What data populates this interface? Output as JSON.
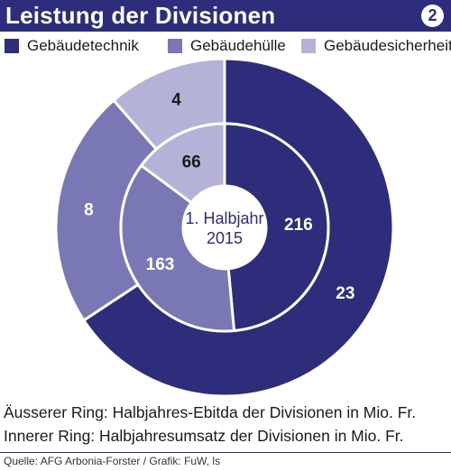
{
  "header": {
    "title": "Leistung der Divisionen",
    "badge": "2"
  },
  "legend": [
    {
      "label": "Gebäudetechnik",
      "color": "#2d2d7b"
    },
    {
      "label": "Gebäudehülle",
      "color": "#7a78b4"
    },
    {
      "label": "Gebäudesicherheit",
      "color": "#b4b2d6"
    }
  ],
  "chart_data": {
    "type": "pie",
    "title": "Leistung der Divisionen",
    "center_label": [
      "1. Halbjahr",
      "2015"
    ],
    "categories": [
      "Gebäudetechnik",
      "Gebäudehülle",
      "Gebäudesicherheit"
    ],
    "colors": [
      "#2d2d7b",
      "#7a78b4",
      "#b4b2d6"
    ],
    "series": [
      {
        "name": "Äusserer Ring: Halbjahres-Ebitda der Divisionen in Mio. Fr.",
        "values": [
          23,
          8,
          4
        ]
      },
      {
        "name": "Innerer Ring: Halbjahresumsatz der Divisionen in Mio. Fr.",
        "values": [
          216,
          163,
          66
        ]
      }
    ]
  },
  "notes": {
    "outer": "Äusserer Ring: Halbjahres-Ebitda der Divisionen in Mio. Fr.",
    "inner": "Innerer Ring: Halbjahresumsatz der Divisionen in Mio. Fr."
  },
  "source": "Quelle: AFG Arbonia-Forster / Grafik: FuW, ls"
}
